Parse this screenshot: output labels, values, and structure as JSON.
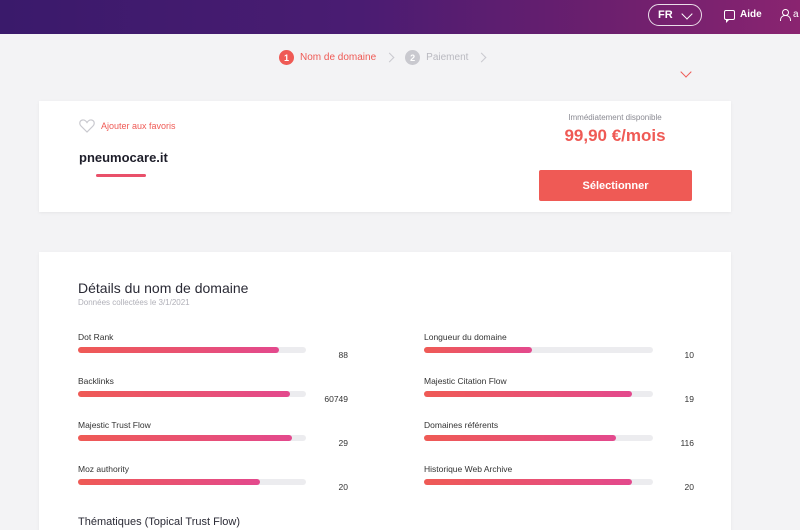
{
  "header": {
    "language": "FR",
    "help_label": "Aide",
    "user_label": "a"
  },
  "stepper": {
    "steps": [
      {
        "number": "1",
        "label": "Nom de domaine"
      },
      {
        "number": "2",
        "label": "Paiement"
      }
    ]
  },
  "domain_card": {
    "favorite_label": "Ajouter aux favoris",
    "domain_name": "pneumocare.it",
    "availability": "Immédiatement disponible",
    "price": "99,90 €/mois",
    "select_label": "Sélectionner"
  },
  "details": {
    "title": "Détails du nom de domaine",
    "subtitle": "Données collectées le 3/1/2021",
    "metrics": [
      {
        "label": "Dot Rank",
        "value": "88",
        "fill_fraction": 0.88
      },
      {
        "label": "Longueur du domaine",
        "value": "10",
        "fill_fraction": 0.47
      },
      {
        "label": "Backlinks",
        "value": "60749",
        "fill_fraction": 0.93
      },
      {
        "label": "Majestic Citation Flow",
        "value": "19",
        "fill_fraction": 0.91
      },
      {
        "label": "Majestic Trust Flow",
        "value": "29",
        "fill_fraction": 0.94
      },
      {
        "label": "Domaines référents",
        "value": "116",
        "fill_fraction": 0.84
      },
      {
        "label": "Moz authority",
        "value": "20",
        "fill_fraction": 0.8
      },
      {
        "label": "Historique Web Archive",
        "value": "20",
        "fill_fraction": 0.91
      }
    ],
    "topical_title": "Thématiques (Topical Trust Flow)"
  },
  "colors": {
    "accent": "#ef5a55",
    "accent_pink": "#e3498d",
    "header_start": "#3a1a6b",
    "header_end": "#8a2470"
  }
}
